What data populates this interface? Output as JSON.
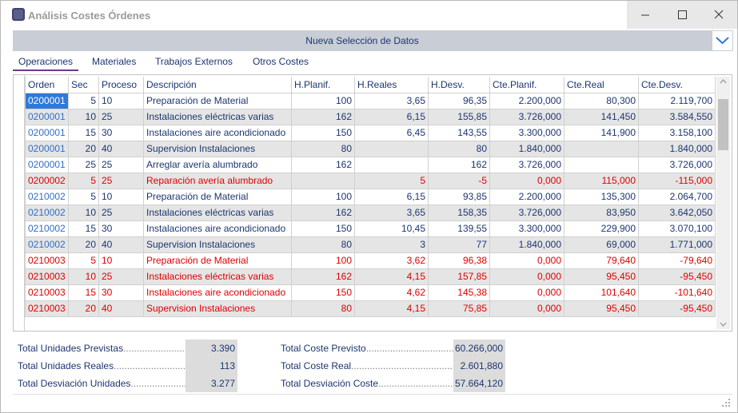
{
  "window": {
    "title": "Análisis Costes Órdenes"
  },
  "toolbar": {
    "button": "Nueva Selección de Datos"
  },
  "tabs": [
    {
      "label": "Operaciones",
      "active": true
    },
    {
      "label": "Materiales",
      "active": false
    },
    {
      "label": "Trabajos Externos",
      "active": false
    },
    {
      "label": "Otros Costes",
      "active": false
    }
  ],
  "table": {
    "columns": [
      "Orden",
      "Sec",
      "Proceso",
      "Descripción",
      "H.Planif.",
      "H.Reales",
      "H.Desv.",
      "Cte.Planif.",
      "Cte.Real",
      "Cte.Desv."
    ],
    "selected_cell": [
      0,
      0
    ],
    "rows": [
      {
        "color": "#1c3670",
        "cells": [
          "0200001",
          "5",
          "10",
          "Preparación de Material",
          "100",
          "3,65",
          "96,35",
          "2.200,000",
          "80,300",
          "2.119,700"
        ]
      },
      {
        "color": "#1c3670",
        "cells": [
          "0200001",
          "10",
          "25",
          "Instalaciones eléctricas varias",
          "162",
          "6,15",
          "155,85",
          "3.726,000",
          "141,450",
          "3.584,550"
        ]
      },
      {
        "color": "#1c3670",
        "cells": [
          "0200001",
          "15",
          "30",
          "Instalaciones aire acondicionado",
          "150",
          "6,45",
          "143,55",
          "3.300,000",
          "141,900",
          "3.158,100"
        ]
      },
      {
        "color": "#1c3670",
        "cells": [
          "0200001",
          "20",
          "40",
          "Supervision Instalaciones",
          "80",
          null,
          "80",
          "1.840,000",
          null,
          "1.840,000"
        ]
      },
      {
        "color": "#1c3670",
        "cells": [
          "0200001",
          "25",
          "25",
          "Arreglar avería alumbrado",
          "162",
          null,
          "162",
          "3.726,000",
          null,
          "3.726,000"
        ]
      },
      {
        "color": "#e00000",
        "cells": [
          "0200002",
          "5",
          "25",
          "Reparación avería alumbrado",
          null,
          "5",
          "-5",
          "0,000",
          "115,000",
          "-115,000"
        ]
      },
      {
        "color": "#1c3670",
        "cells": [
          "0210002",
          "5",
          "10",
          "Preparación de Material",
          "100",
          "6,15",
          "93,85",
          "2.200,000",
          "135,300",
          "2.064,700"
        ]
      },
      {
        "color": "#1c3670",
        "cells": [
          "0210002",
          "10",
          "25",
          "Instalaciones eléctricas varias",
          "162",
          "3,65",
          "158,35",
          "3.726,000",
          "83,950",
          "3.642,050"
        ]
      },
      {
        "color": "#1c3670",
        "cells": [
          "0210002",
          "15",
          "30",
          "Instalaciones aire acondicionado",
          "150",
          "10,45",
          "139,55",
          "3.300,000",
          "229,900",
          "3.070,100"
        ]
      },
      {
        "color": "#1c3670",
        "cells": [
          "0210002",
          "20",
          "40",
          "Supervision Instalaciones",
          "80",
          "3",
          "77",
          "1.840,000",
          "69,000",
          "1.771,000"
        ]
      },
      {
        "color": "#e00000",
        "cells": [
          "0210003",
          "5",
          "10",
          "Preparación de Material",
          "100",
          "3,62",
          "96,38",
          "0,000",
          "79,640",
          "-79,640"
        ]
      },
      {
        "color": "#e00000",
        "cells": [
          "0210003",
          "10",
          "25",
          "Instalaciones eléctricas varias",
          "162",
          "4,15",
          "157,85",
          "0,000",
          "95,450",
          "-95,450"
        ]
      },
      {
        "color": "#e00000",
        "cells": [
          "0210003",
          "15",
          "30",
          "Instalaciones aire acondicionado",
          "150",
          "4,62",
          "145,38",
          "0,000",
          "101,640",
          "-101,640"
        ]
      },
      {
        "color": "#e00000",
        "cells": [
          "0210003",
          "20",
          "40",
          "Supervision Instalaciones",
          "80",
          "4,15",
          "75,85",
          "0,000",
          "95,450",
          "-95,450"
        ]
      }
    ]
  },
  "summary": {
    "left": [
      {
        "label": "Total Unidades Previstas",
        "value": "3.390"
      },
      {
        "label": "Total Unidades Reales",
        "value": "113"
      },
      {
        "label": "Total Desviación Unidades",
        "value": "3.277"
      }
    ],
    "right": [
      {
        "label": "Total Coste Previsto",
        "value": "60.266,000"
      },
      {
        "label": "Total Coste Real",
        "value": "2.601,880"
      },
      {
        "label": "Total Desviación Coste",
        "value": "57.664,120"
      }
    ]
  }
}
